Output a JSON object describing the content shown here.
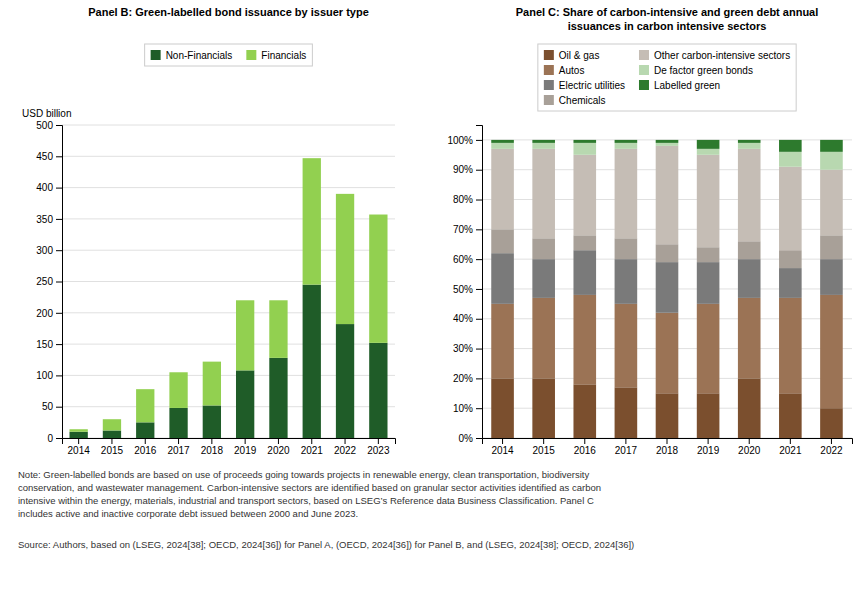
{
  "chart_data": [
    {
      "type": "bar",
      "stacked": true,
      "grid": true,
      "legend": "top",
      "title": "Panel B: Green-labelled bond issuance by issuer type",
      "ylabel": "USD billion",
      "categories": [
        2014,
        2015,
        2016,
        2017,
        2018,
        2019,
        2020,
        2021,
        2022,
        2023
      ],
      "series": [
        {
          "name": "Non-Financials",
          "color": "#1f5c28",
          "values": [
            10,
            12,
            25,
            48,
            52,
            108,
            128,
            245,
            182,
            152
          ]
        },
        {
          "name": "Financials",
          "color": "#92d050",
          "values": [
            4,
            18,
            53,
            57,
            70,
            112,
            92,
            202,
            208,
            205
          ]
        }
      ],
      "ylim": [
        0,
        500
      ],
      "yticks": [
        0,
        50,
        100,
        150,
        200,
        250,
        300,
        350,
        400,
        450,
        500
      ]
    },
    {
      "type": "bar",
      "stacked": true,
      "grid": true,
      "legend": "top",
      "title": "Panel C: Share of carbon-intensive and green debt annual\nissuances in carbon intensive sectors",
      "categories": [
        2014,
        2015,
        2016,
        2017,
        2018,
        2019,
        2020,
        2021,
        2022
      ],
      "series": [
        {
          "name": "Oil & gas",
          "color": "#7B4F2E",
          "values": [
            20,
            20,
            18,
            17,
            15,
            15,
            20,
            15,
            10
          ]
        },
        {
          "name": "Autos",
          "color": "#9B7355",
          "values": [
            25,
            27,
            30,
            28,
            27,
            30,
            27,
            32,
            38
          ]
        },
        {
          "name": "Electric utilities",
          "color": "#7A7A7A",
          "values": [
            17,
            13,
            15,
            15,
            17,
            14,
            13,
            10,
            12
          ]
        },
        {
          "name": "Chemicals",
          "color": "#A8A098",
          "values": [
            8,
            7,
            5,
            7,
            6,
            5,
            6,
            6,
            8
          ]
        },
        {
          "name": "Other carbon-intensive sectors",
          "color": "#C5BDB5",
          "values": [
            27,
            30,
            27,
            30,
            33,
            31,
            31,
            28,
            22
          ]
        },
        {
          "name": "De factor green bonds",
          "color": "#B8D8B0",
          "values": [
            2,
            2,
            4,
            2,
            1,
            2,
            2,
            5,
            6
          ]
        },
        {
          "name": "Labelled green",
          "color": "#2D7A2D",
          "values": [
            1,
            1,
            1,
            1,
            1,
            3,
            1,
            4,
            4
          ]
        }
      ],
      "ylim": [
        0,
        105
      ],
      "yticks": [
        {
          "value": 0,
          "label": "0%"
        },
        {
          "value": 10,
          "label": "10%"
        },
        {
          "value": 20,
          "label": "20%"
        },
        {
          "value": 30,
          "label": "30%"
        },
        {
          "value": 40,
          "label": "40%"
        },
        {
          "value": 50,
          "label": "50%"
        },
        {
          "value": 60,
          "label": "60%"
        },
        {
          "value": 70,
          "label": "70%"
        },
        {
          "value": 80,
          "label": "80%"
        },
        {
          "value": 90,
          "label": "90%"
        },
        {
          "value": 100,
          "label": "100%"
        }
      ]
    }
  ],
  "note": "Note: Green-labelled bonds are based on use of proceeds going towards projects in renewable energy, clean transportation, biodiversity\nconservation, and wastewater management. Carbon-intensive sectors are identified based on granular sector activities identified as carbon\nintensive within the energy, materials, industrial and transport sectors, based on LSEG’s Reference data Business Classification. Panel C\nincludes active and inactive corporate debt issued between 2000 and June 2023.",
  "source": "Source: Authors, based on (LSEG, 2024[38]; OECD, 2024[36]) for Panel A, (OECD, 2024[36]) for Panel B, and (LSEG, 2024[38]; OECD, 2024[36])"
}
